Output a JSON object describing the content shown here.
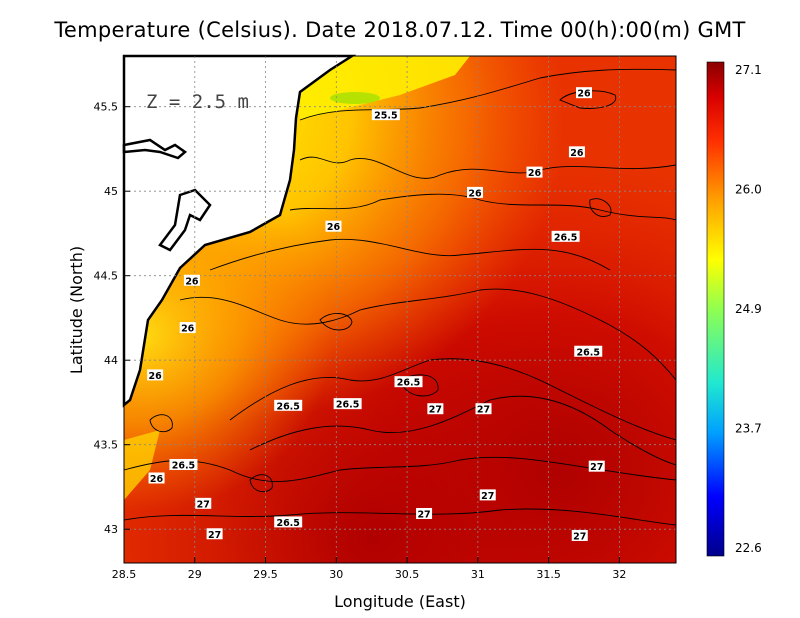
{
  "title": "Temperature (Celsius). Date 2018.07.12. Time 00(h):00(m) GMT",
  "depth_label": "Z = 2.5 m",
  "axes": {
    "xlabel": "Longitude (East)",
    "ylabel": "Latitude (North)",
    "xlim": [
      28.5,
      32.4
    ],
    "ylim": [
      42.8,
      45.8
    ],
    "xticks": [
      "28.5",
      "29",
      "29.5",
      "30",
      "30.5",
      "31",
      "31.5",
      "32"
    ],
    "yticks": [
      "43",
      "43.5",
      "44",
      "44.5",
      "45",
      "45.5"
    ],
    "grid": true
  },
  "colorbar": {
    "labels": [
      "27.1",
      "26.0",
      "24.9",
      "23.7",
      "22.6"
    ],
    "min": 22.6,
    "max": 27.1,
    "colors": [
      "#00008b",
      "#0000ff",
      "#00bfff",
      "#40e0d0",
      "#7fff7f",
      "#ffff00",
      "#ffa500",
      "#ff4500",
      "#e00000",
      "#8b0000"
    ]
  },
  "contour_labels": [
    {
      "text": "25.5",
      "lon": 30.35,
      "lat": 45.45
    },
    {
      "text": "26",
      "lon": 31.75,
      "lat": 45.58
    },
    {
      "text": "26",
      "lon": 31.7,
      "lat": 45.23
    },
    {
      "text": "26",
      "lon": 31.4,
      "lat": 45.11
    },
    {
      "text": "26",
      "lon": 30.98,
      "lat": 44.99
    },
    {
      "text": "26",
      "lon": 29.98,
      "lat": 44.79
    },
    {
      "text": "26.5",
      "lon": 31.62,
      "lat": 44.73
    },
    {
      "text": "26",
      "lon": 28.98,
      "lat": 44.47
    },
    {
      "text": "26",
      "lon": 28.95,
      "lat": 44.19
    },
    {
      "text": "26",
      "lon": 28.72,
      "lat": 43.91
    },
    {
      "text": "26.5",
      "lon": 31.78,
      "lat": 44.05
    },
    {
      "text": "26.5",
      "lon": 30.51,
      "lat": 43.87
    },
    {
      "text": "26.5",
      "lon": 29.66,
      "lat": 43.73
    },
    {
      "text": "26.5",
      "lon": 30.08,
      "lat": 43.74
    },
    {
      "text": "27",
      "lon": 30.7,
      "lat": 43.71
    },
    {
      "text": "27",
      "lon": 31.04,
      "lat": 43.71
    },
    {
      "text": "26.5",
      "lon": 28.92,
      "lat": 43.38
    },
    {
      "text": "26",
      "lon": 28.73,
      "lat": 43.3
    },
    {
      "text": "27",
      "lon": 31.84,
      "lat": 43.37
    },
    {
      "text": "27",
      "lon": 31.07,
      "lat": 43.2
    },
    {
      "text": "27",
      "lon": 29.06,
      "lat": 43.15
    },
    {
      "text": "27",
      "lon": 30.62,
      "lat": 43.09
    },
    {
      "text": "26.5",
      "lon": 29.66,
      "lat": 43.04
    },
    {
      "text": "27",
      "lon": 29.14,
      "lat": 42.97
    },
    {
      "text": "27",
      "lon": 31.72,
      "lat": 42.96
    }
  ]
}
